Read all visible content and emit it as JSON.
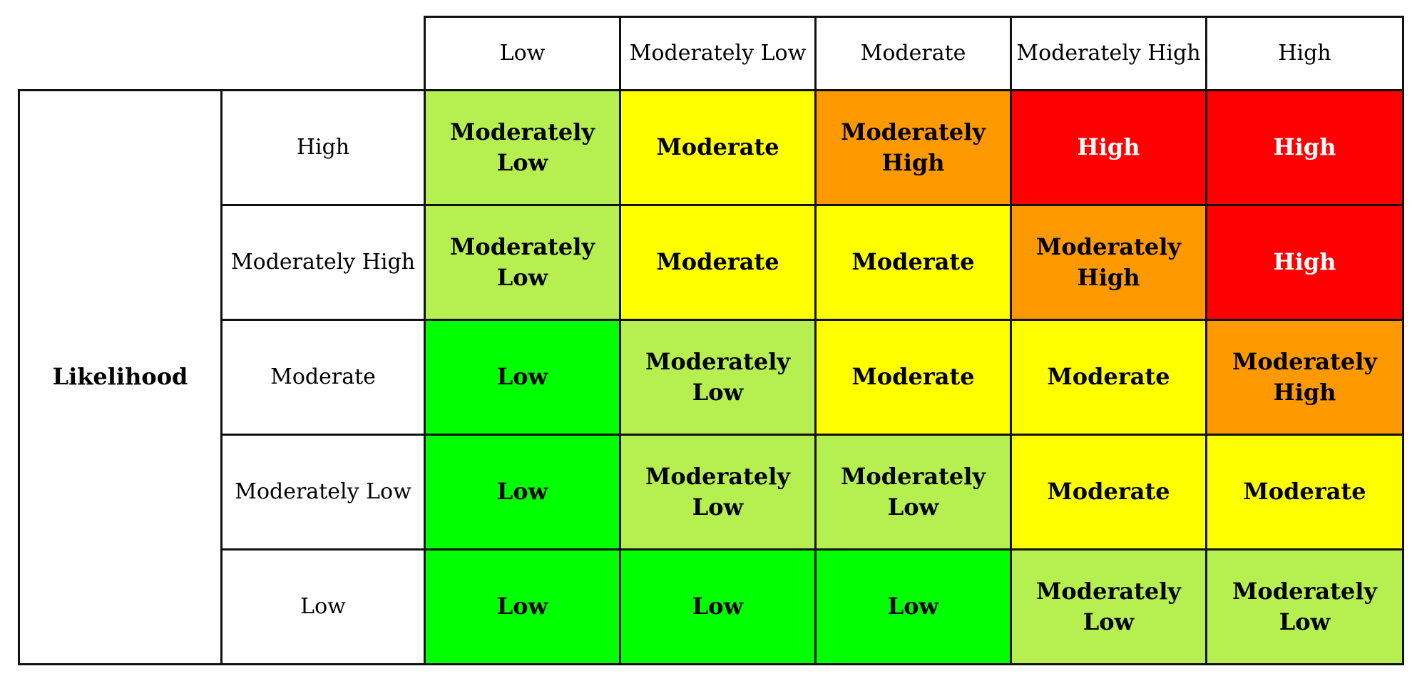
{
  "chart_data": {
    "type": "table",
    "row_axis_label": "Likelihood",
    "column_headers": [
      "Low",
      "Moderately Low",
      "Moderate",
      "Moderately High",
      "High"
    ],
    "row_headers": [
      "High",
      "Moderately High",
      "Moderate",
      "Moderately Low",
      "Low"
    ],
    "cells": [
      [
        "Moderately Low",
        "Moderate",
        "Moderately High",
        "High",
        "High"
      ],
      [
        "Moderately Low",
        "Moderate",
        "Moderate",
        "Moderately High",
        "High"
      ],
      [
        "Low",
        "Moderately Low",
        "Moderate",
        "Moderate",
        "Moderately High"
      ],
      [
        "Low",
        "Moderately Low",
        "Moderately Low",
        "Moderate",
        "Moderate"
      ],
      [
        "Low",
        "Low",
        "Low",
        "Moderately Low",
        "Moderately Low"
      ]
    ],
    "level_colors": {
      "Low": "#00ff00",
      "Moderately Low": "#b5ef50",
      "Moderate": "#ffff00",
      "Moderately High": "#ff9900",
      "High": "#ff0000"
    },
    "text_colors": {
      "Low": "#000000",
      "Moderately Low": "#000000",
      "Moderate": "#000000",
      "Moderately High": "#000000",
      "High": "#ffffff"
    }
  }
}
